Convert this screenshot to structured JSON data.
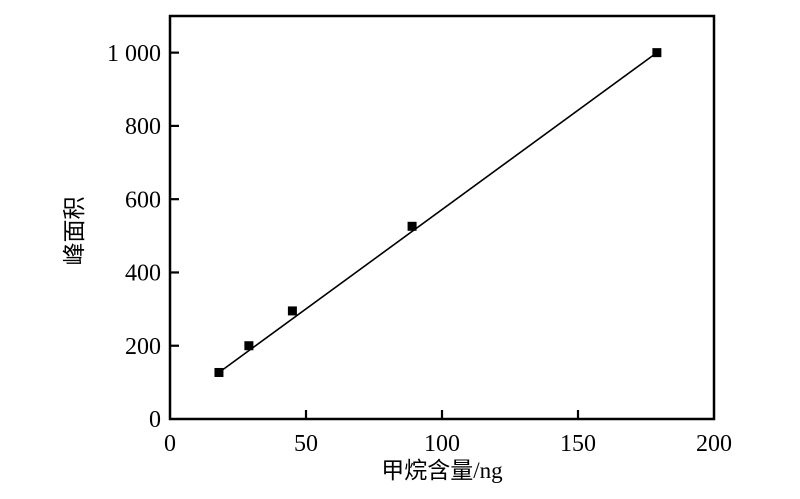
{
  "figure": {
    "background_color": "#ffffff",
    "ink_color": "#000000"
  },
  "chart_data": {
    "type": "scatter",
    "title": "",
    "xlabel": "甲烷含量/ng",
    "ylabel": "峰面积",
    "xlim": [
      0,
      200
    ],
    "ylim": [
      0,
      1100
    ],
    "x_ticks": [
      0,
      50,
      100,
      150,
      200
    ],
    "x_tick_labels": [
      "0",
      "50",
      "100",
      "150",
      "200"
    ],
    "y_ticks": [
      0,
      200,
      400,
      600,
      800,
      1000
    ],
    "y_tick_labels": [
      "0",
      "200",
      "400",
      "600",
      "800",
      "1 000"
    ],
    "grid": false,
    "legend": "none",
    "marker": "filled-square",
    "marker_size_px": 9,
    "marker_color": "#000000",
    "line_color": "#000000",
    "series": [
      {
        "name": "methane-calibration-points",
        "x": [
          18,
          29,
          45,
          89,
          179
        ],
        "y": [
          127,
          200,
          295,
          526,
          1000
        ]
      }
    ],
    "fit_line": {
      "type": "linear",
      "from_point": [
        18,
        127
      ],
      "to_point": [
        179,
        1000
      ]
    }
  }
}
